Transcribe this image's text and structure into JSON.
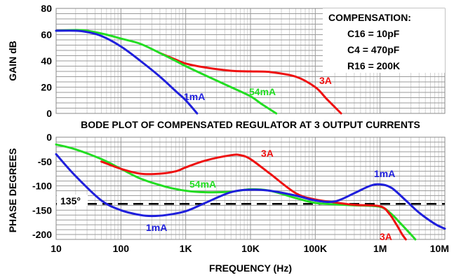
{
  "chart_data": [
    {
      "type": "line",
      "scale_x": "log",
      "xlim": [
        10,
        10000000
      ],
      "ylim": [
        0,
        80
      ],
      "ylabel": "GAIN dB",
      "yticks": [
        "0",
        "20",
        "40",
        "60",
        "80"
      ],
      "grid": true,
      "series": [
        {
          "name": "1mA",
          "color": "#1f1fdc",
          "points": [
            [
              10,
              63
            ],
            [
              20,
              63
            ],
            [
              30,
              62
            ],
            [
              50,
              59
            ],
            [
              100,
              51
            ],
            [
              200,
              40
            ],
            [
              400,
              28
            ],
            [
              700,
              17
            ],
            [
              1000,
              10
            ],
            [
              1500,
              0
            ]
          ]
        },
        {
          "name": "54mA",
          "color": "#22dd22",
          "points": [
            [
              10,
              63
            ],
            [
              20,
              63.5
            ],
            [
              30,
              63
            ],
            [
              60,
              60
            ],
            [
              100,
              57
            ],
            [
              200,
              53
            ],
            [
              400,
              46
            ],
            [
              700,
              40
            ],
            [
              1000,
              36
            ],
            [
              2000,
              29
            ],
            [
              5000,
              20
            ],
            [
              10000,
              13
            ],
            [
              15000,
              7
            ],
            [
              25000,
              0
            ]
          ]
        },
        {
          "name": "3A",
          "color": "#ee1111",
          "points": [
            [
              400,
              46
            ],
            [
              700,
              41
            ],
            [
              1000,
              38
            ],
            [
              2000,
              35
            ],
            [
              5000,
              32.5
            ],
            [
              10000,
              32
            ],
            [
              20000,
              31.5
            ],
            [
              50000,
              28
            ],
            [
              100000,
              20
            ],
            [
              150000,
              11
            ],
            [
              250000,
              0
            ]
          ]
        }
      ],
      "annotations": [
        {
          "text": "1mA",
          "color": "#1f1fdc"
        },
        {
          "text": "54mA",
          "color": "#22dd22"
        },
        {
          "text": "3A",
          "color": "#ee1111"
        }
      ],
      "legend_box": {
        "title": "COMPENSATION:",
        "lines": [
          "C16 = 10pF",
          "C4 = 470pF",
          "R16 = 200K"
        ]
      }
    },
    {
      "type": "line",
      "title": "BODE PLOT OF COMPENSATED REGULATOR AT 3 OUTPUT CURRENTS",
      "scale_x": "log",
      "xlim": [
        10,
        10000000
      ],
      "ylim": [
        -210,
        0
      ],
      "xlabel": "FREQUENCY (Hz)",
      "ylabel": "PHASE DEGREES",
      "xticks": [
        "10",
        "100",
        "1K",
        "10K",
        "100K",
        "1M",
        "10M"
      ],
      "yticks": [
        "0",
        "-50",
        "-100",
        "-150",
        "-200"
      ],
      "grid": true,
      "series": [
        {
          "name": "1mA",
          "color": "#1f1fdc",
          "points": [
            [
              10,
              -35
            ],
            [
              20,
              -80
            ],
            [
              50,
              -130
            ],
            [
              100,
              -150
            ],
            [
              200,
              -160
            ],
            [
              300,
              -162
            ],
            [
              500,
              -160
            ],
            [
              1000,
              -152
            ],
            [
              2000,
              -135
            ],
            [
              5000,
              -113
            ],
            [
              10000,
              -108
            ],
            [
              20000,
              -110
            ],
            [
              50000,
              -120
            ],
            [
              100000,
              -130
            ],
            [
              200000,
              -132
            ],
            [
              400000,
              -115
            ],
            [
              700000,
              -100
            ],
            [
              1000000,
              -97
            ],
            [
              1500000,
              -104
            ],
            [
              2500000,
              -130
            ],
            [
              4000000,
              -155
            ],
            [
              7000000,
              -178
            ],
            [
              10000000,
              -188
            ]
          ]
        },
        {
          "name": "54mA",
          "color": "#22dd22",
          "points": [
            [
              10,
              -15
            ],
            [
              20,
              -25
            ],
            [
              50,
              -45
            ],
            [
              100,
              -65
            ],
            [
              200,
              -85
            ],
            [
              500,
              -102
            ],
            [
              1000,
              -110
            ],
            [
              2000,
              -113
            ],
            [
              5000,
              -112
            ],
            [
              10000,
              -107
            ],
            [
              20000,
              -110
            ],
            [
              50000,
              -125
            ],
            [
              100000,
              -135
            ],
            [
              200000,
              -138
            ],
            [
              400000,
              -140
            ],
            [
              1000000,
              -143
            ],
            [
              1500000,
              -158
            ],
            [
              2000000,
              -175
            ],
            [
              3000000,
              -200
            ],
            [
              3500000,
              -210
            ]
          ]
        },
        {
          "name": "3A",
          "color": "#ee1111",
          "points": [
            [
              50,
              -50
            ],
            [
              100,
              -65
            ],
            [
              200,
              -75
            ],
            [
              400,
              -75
            ],
            [
              700,
              -70
            ],
            [
              1000,
              -62
            ],
            [
              2000,
              -48
            ],
            [
              5000,
              -37
            ],
            [
              7000,
              -37
            ],
            [
              10000,
              -45
            ],
            [
              20000,
              -75
            ],
            [
              50000,
              -115
            ],
            [
              100000,
              -128
            ],
            [
              200000,
              -134
            ],
            [
              400000,
              -139
            ],
            [
              1000000,
              -142
            ],
            [
              1400000,
              -158
            ],
            [
              1800000,
              -180
            ],
            [
              2200000,
              -200
            ],
            [
              2500000,
              -210
            ]
          ]
        }
      ],
      "reference_line": {
        "y": -137,
        "label": "135°",
        "style": "dashed"
      },
      "annotations": [
        {
          "text": "3A",
          "color": "#ee1111"
        },
        {
          "text": "54mA",
          "color": "#22dd22"
        },
        {
          "text": "1mA",
          "color": "#1f1fdc"
        },
        {
          "text": "1mA",
          "color": "#1f1fdc"
        },
        {
          "text": "3A",
          "color": "#ee1111"
        }
      ]
    }
  ]
}
